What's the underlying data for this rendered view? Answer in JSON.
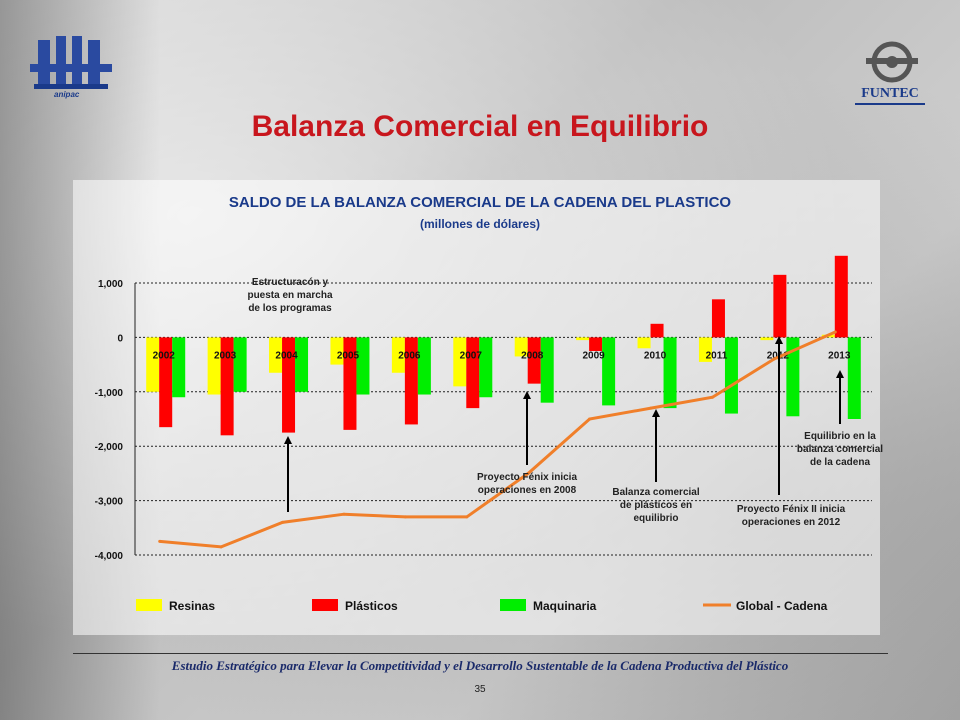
{
  "page": {
    "title": "Balanza Comercial en Equilibrio",
    "footer": "Estudio Estratégico para Elevar la Competitividad y el Desarrollo Sustentable de la Cadena Productiva del Plástico",
    "page_number": "35",
    "logo_left_text": "anipac",
    "logo_right_text": "FUNTEC"
  },
  "chart_data": {
    "type": "bar",
    "title": "SALDO DE LA BALANZA COMERCIAL DE LA CADENA DEL PLASTICO",
    "subtitle": "(millones de dólares)",
    "categories": [
      "2002",
      "2003",
      "2004",
      "2005",
      "2006",
      "2007",
      "2008",
      "2009",
      "2010",
      "2011",
      "2012",
      "2013"
    ],
    "ylim": [
      -4000,
      1000
    ],
    "yticks": [
      {
        "value": 1000,
        "label": "1,000"
      },
      {
        "value": 0,
        "label": "0"
      },
      {
        "value": -1000,
        "label": "-1,000"
      },
      {
        "value": -2000,
        "label": "-2,000"
      },
      {
        "value": -3000,
        "label": "-3,000"
      },
      {
        "value": -4000,
        "label": "-4,000"
      }
    ],
    "grid": true,
    "legend_position": "bottom",
    "series": [
      {
        "name": "Resinas",
        "color": "#ffff00",
        "kind": "bar",
        "values": [
          -1000,
          -1050,
          -650,
          -500,
          -650,
          -900,
          -350,
          -50,
          -200,
          -450,
          -50,
          50
        ]
      },
      {
        "name": "Plásticos",
        "color": "#ff0000",
        "kind": "bar",
        "values": [
          -1650,
          -1800,
          -1750,
          -1700,
          -1600,
          -1300,
          -850,
          -250,
          250,
          700,
          1150,
          1500
        ]
      },
      {
        "name": "Maquinaria",
        "color": "#00ee00",
        "kind": "bar",
        "values": [
          -1100,
          -1000,
          -1000,
          -1050,
          -1050,
          -1100,
          -1200,
          -1250,
          -1300,
          -1400,
          -1450,
          -1500
        ]
      },
      {
        "name": "Global - Cadena",
        "color": "#f07f2a",
        "kind": "line",
        "values": [
          -3750,
          -3850,
          -3400,
          -3250,
          -3300,
          -3300,
          -2500,
          -1500,
          -1300,
          -1100,
          -400,
          100
        ]
      }
    ],
    "annotations": [
      {
        "lines": [
          "Estructuracón y",
          "puesta en marcha",
          "de los programas"
        ],
        "category": "2004"
      },
      {
        "lines": [
          "Proyecto Fénix inicia",
          "operaciones en 2008"
        ],
        "category": "2008"
      },
      {
        "lines": [
          "Balanza comercial",
          "de plásticos en",
          "equilibrio"
        ],
        "category": "2010"
      },
      {
        "lines": [
          "Proyecto Fénix II inicia",
          "operaciones en 2012"
        ],
        "category": "2012"
      },
      {
        "lines": [
          "Equilibrio en la",
          "balanza comercial",
          "de la cadena"
        ],
        "category": "2013"
      }
    ]
  }
}
